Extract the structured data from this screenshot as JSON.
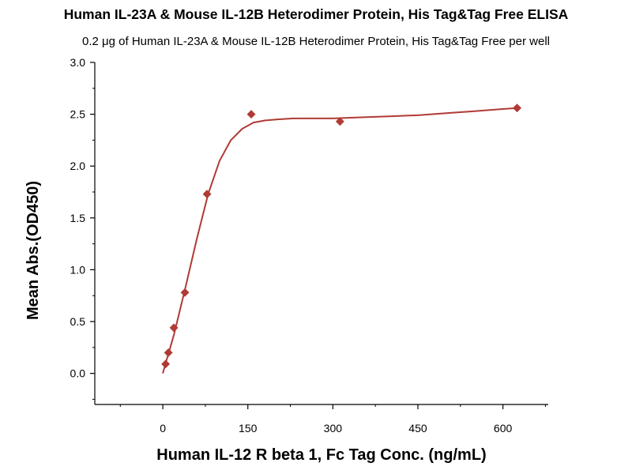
{
  "chart_data": {
    "type": "scatter",
    "title": "Human IL-23A & Mouse IL-12B Heterodimer Protein, His Tag&Tag Free ELISA",
    "subtitle": "0.2 μg of Human IL-23A & Mouse IL-12B Heterodimer Protein, His Tag&Tag Free per well",
    "xlabel": "Human IL-12 R beta 1, Fc Tag Conc. (ng/mL)",
    "ylabel": "Mean Abs.(OD450)",
    "xlim": [
      -120,
      680
    ],
    "ylim": [
      -0.3,
      3.0
    ],
    "x_ticks": [
      0,
      150,
      300,
      450,
      600
    ],
    "y_ticks": [
      0.0,
      0.5,
      1.0,
      1.5,
      2.0,
      2.5,
      3.0
    ],
    "x_tick_labels": [
      "0",
      "150",
      "300",
      "450",
      "600"
    ],
    "y_tick_labels": [
      "0.0",
      "0.5",
      "1.0",
      "1.5",
      "2.0",
      "2.5",
      "3.0"
    ],
    "grid": false,
    "legend": "none",
    "color": "#b03a35",
    "series": [
      {
        "x": [
          4.9,
          9.8,
          19.5,
          39,
          78,
          156,
          312.5,
          625
        ],
        "y": [
          0.09,
          0.2,
          0.44,
          0.78,
          1.73,
          2.5,
          2.43,
          2.56
        ]
      }
    ],
    "fit_curve": {
      "x": [
        0,
        5,
        10,
        20,
        40,
        60,
        80,
        100,
        120,
        140,
        160,
        180,
        200,
        230,
        260,
        300,
        350,
        400,
        450,
        500,
        550,
        600,
        625
      ],
      "y": [
        0.0,
        0.1,
        0.19,
        0.38,
        0.83,
        1.3,
        1.73,
        2.05,
        2.25,
        2.36,
        2.42,
        2.44,
        2.45,
        2.46,
        2.46,
        2.46,
        2.47,
        2.48,
        2.49,
        2.51,
        2.53,
        2.55,
        2.56
      ]
    }
  }
}
